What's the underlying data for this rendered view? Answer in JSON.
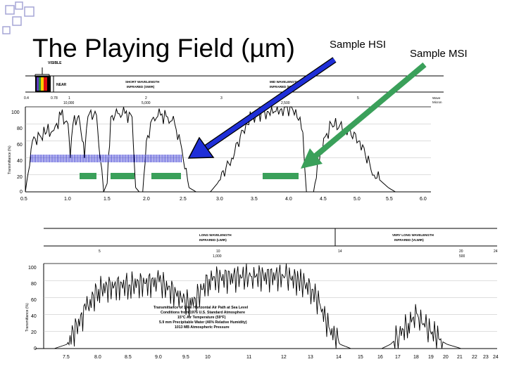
{
  "slide": {
    "title": "The Playing Field (µm)",
    "label_hsi": "Sample HSI",
    "label_msi": "Sample MSI"
  },
  "colors": {
    "bullet": "#a5a5d6",
    "arrow_hsi": "#1f2fd8",
    "arrow_msi": "#3aa05a",
    "msi_bar": "#3aa05a",
    "hsi_bar": "#2a2ad0"
  },
  "top_chart": {
    "visible_label": "VISIBLE",
    "near_label": "NEAR",
    "swir_label": "SHORT WAVELENGTH INFRARED (SWIR)",
    "mwir_label": "MID WAVELENGTH INFRARED (MWIR)",
    "wave_number_label": "Wave Number",
    "micron_ticks": [
      "0.4",
      "0.78",
      "1",
      "2",
      "3",
      "5"
    ],
    "wavenumber_ticks": [
      "10,000",
      "5,000",
      "2,500"
    ],
    "y_ticks": [
      "100",
      "80",
      "60",
      "40",
      "20",
      "0"
    ],
    "y_axis_label": "Transmittance (%)",
    "x_ticks": [
      "0.5",
      "1.0",
      "1.5",
      "2.0",
      "2.5",
      "3.0",
      "3.5",
      "4.0",
      "4.5",
      "5.0",
      "5.5",
      "6.0"
    ]
  },
  "bottom_chart": {
    "lwir_label": "LONG WAVELENGTH INFRARED (LWIR)",
    "vlwir_label": "VERY LONG WAVELENGTH INFRARED (VLWIR)",
    "micron_ticks": [
      "5",
      "10",
      "14",
      "20",
      "24"
    ],
    "wavenumber_ticks": [
      "1,000",
      "500"
    ],
    "y_ticks": [
      "100",
      "80",
      "60",
      "40",
      "20",
      "0"
    ],
    "y_axis_label": "Transmittance (%)",
    "x_ticks": [
      "7.5",
      "8.0",
      "8.5",
      "9.0",
      "9.5",
      "10",
      "11",
      "12",
      "13",
      "14",
      "15",
      "16",
      "17",
      "18",
      "19",
      "20",
      "21",
      "22",
      "23",
      "24"
    ],
    "caption": [
      "Transmittance of 1 km Horizontal Air Path at Sea Level",
      "Conditions from 1976 U.S. Standard Atmosphere",
      "15°C Air Temperature (59°F)",
      "5.9 mm Precipitable Water (46% Relative Humidity)",
      "1013 MB Atmospheric Pressure"
    ]
  },
  "chart_data": [
    {
      "type": "line",
      "x": [
        0.3,
        0.4,
        0.6,
        0.7,
        0.8,
        0.9,
        0.93,
        0.97,
        1.05,
        1.1,
        1.13,
        1.16,
        1.2,
        1.3,
        1.35,
        1.4,
        1.45,
        1.5,
        1.6,
        1.7,
        1.8,
        1.85,
        1.9,
        1.95,
        2.0,
        2.1,
        2.2,
        2.3,
        2.4,
        2.5,
        2.6,
        2.7,
        2.8,
        2.9,
        3.0,
        3.2,
        3.4,
        3.5,
        3.7,
        3.9,
        4.1,
        4.2,
        4.25,
        4.35,
        4.45,
        4.6,
        4.8,
        5.0,
        5.2,
        5.4,
        5.5,
        5.6,
        6.0
      ],
      "y": [
        0,
        60,
        70,
        72,
        90,
        80,
        40,
        80,
        90,
        60,
        40,
        75,
        92,
        90,
        40,
        0,
        10,
        88,
        92,
        92,
        88,
        5,
        0,
        0,
        60,
        88,
        90,
        88,
        80,
        50,
        5,
        0,
        0,
        0,
        10,
        40,
        80,
        90,
        95,
        98,
        97,
        70,
        0,
        0,
        50,
        80,
        75,
        60,
        20,
        5,
        0,
        0,
        0
      ],
      "xlabel": "",
      "ylabel": "Transmittance (%)",
      "xlim": [
        0.3,
        6.0
      ],
      "ylim": [
        0,
        100
      ]
    },
    {
      "type": "line",
      "x": [
        7.0,
        7.3,
        7.5,
        7.8,
        8.0,
        8.5,
        9.0,
        9.4,
        9.6,
        10,
        11,
        12,
        12.5,
        13,
        13.3,
        13.6,
        14,
        14.5,
        15,
        16,
        16.5,
        17,
        17.5,
        18,
        18.5,
        19,
        19.5,
        20,
        21,
        22,
        23,
        24
      ],
      "y": [
        0,
        0,
        5,
        45,
        70,
        75,
        78,
        60,
        50,
        82,
        85,
        85,
        80,
        70,
        50,
        25,
        5,
        0,
        0,
        0,
        5,
        15,
        30,
        40,
        25,
        20,
        10,
        5,
        0,
        0,
        0,
        0
      ],
      "xlabel": "",
      "ylabel": "Transmittance (%)",
      "xlim": [
        7.0,
        24.0
      ],
      "ylim": [
        0,
        100
      ]
    }
  ]
}
